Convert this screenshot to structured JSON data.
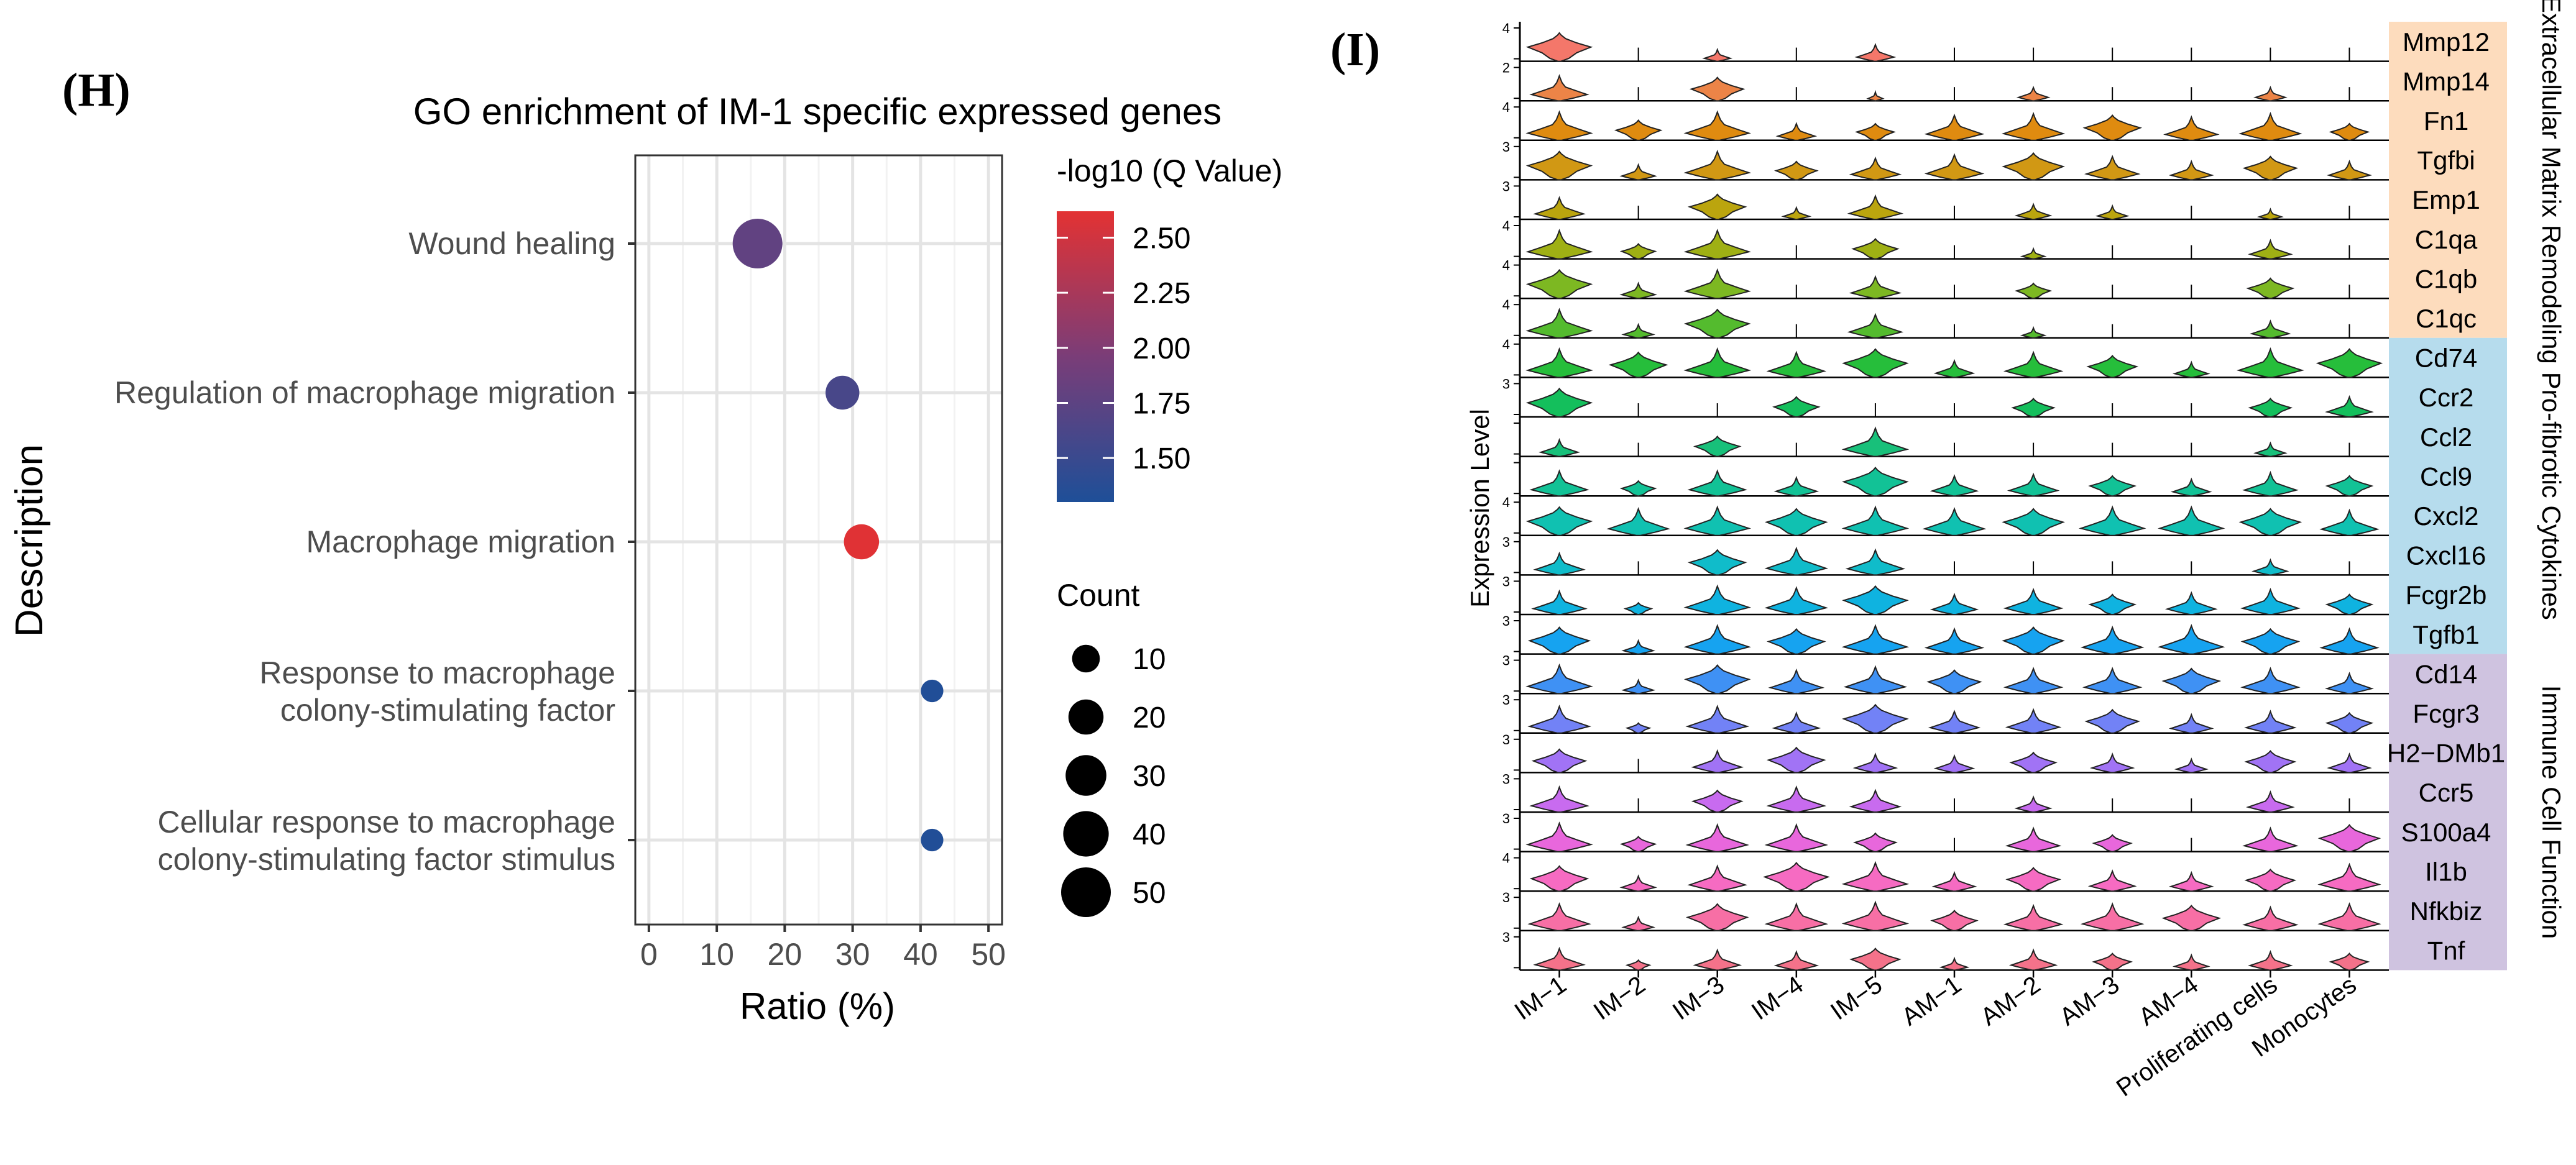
{
  "panel_h": {
    "label": "(H)",
    "chart_data": {
      "type": "scatter",
      "title": "GO enrichment of IM-1 specific expressed genes",
      "xlabel": "Ratio (%)",
      "ylabel": "Description",
      "xlim": [
        -2,
        52
      ],
      "xticks": [
        0,
        10,
        20,
        30,
        40,
        50
      ],
      "grid": true,
      "terms": [
        {
          "line1": "Wound healing",
          "line2": "",
          "ratio": 16,
          "count": 50,
          "qvalue": 1.78
        },
        {
          "line1": "Regulation of macrophage migration",
          "line2": "",
          "ratio": 28.5,
          "count": 18,
          "qvalue": 1.6
        },
        {
          "line1": "Macrophage migration",
          "line2": "",
          "ratio": 31.3,
          "count": 20,
          "qvalue": 2.6
        },
        {
          "line1": "Response to macrophage",
          "line2": "colony-stimulating factor",
          "ratio": 41.7,
          "count": 5,
          "qvalue": 1.32
        },
        {
          "line1": "Cellular response to macrophage",
          "line2": "colony-stimulating factor stimulus",
          "ratio": 41.7,
          "count": 5,
          "qvalue": 1.32
        }
      ],
      "color_legend": {
        "title": "-log10 (Q Value)",
        "min": 1.3,
        "max": 2.62,
        "low_color": "#1e4f98",
        "mid_color": "#7a3d78",
        "high_color": "#e33233",
        "ticks": [
          "2.50",
          "2.25",
          "2.00",
          "1.75",
          "1.50"
        ]
      },
      "size_legend": {
        "title": "Count",
        "values": [
          10,
          20,
          30,
          40,
          50
        ]
      }
    }
  },
  "panel_i": {
    "label": "(I)",
    "chart_data": {
      "type": "violin",
      "ylabel": "Expression Level",
      "clusters": [
        "IM−1",
        "IM−2",
        "IM−3",
        "IM−4",
        "IM−5",
        "AM−1",
        "AM−2",
        "AM−3",
        "AM−4",
        "Proliferating cells",
        "Monocytes"
      ],
      "genes": [
        {
          "name": "Mmp12",
          "ymax": "4",
          "color": "#f4776a",
          "group": 0,
          "levels": [
            0.85,
            0,
            0.35,
            0,
            0.5,
            0,
            0,
            0,
            0,
            0,
            0
          ]
        },
        {
          "name": "Mmp14",
          "ymax": "2",
          "color": "#ec8447",
          "group": 0,
          "levels": [
            0.75,
            0,
            0.7,
            0,
            0.2,
            0,
            0.4,
            0,
            0,
            0.4,
            0
          ]
        },
        {
          "name": "Fn1",
          "ymax": "4",
          "color": "#df8b10",
          "group": 0,
          "levels": [
            0.85,
            0.6,
            0.85,
            0.5,
            0.5,
            0.75,
            0.8,
            0.75,
            0.7,
            0.8,
            0.5
          ]
        },
        {
          "name": "Tgfbi",
          "ymax": "3",
          "color": "#d19814",
          "group": 0,
          "levels": [
            0.85,
            0.45,
            0.85,
            0.55,
            0.65,
            0.75,
            0.8,
            0.7,
            0.55,
            0.7,
            0.55
          ]
        },
        {
          "name": "Emp1",
          "ymax": "3",
          "color": "#bba50e",
          "group": 0,
          "levels": [
            0.65,
            0,
            0.75,
            0.35,
            0.7,
            0,
            0.45,
            0.4,
            0,
            0.3,
            0
          ]
        },
        {
          "name": "C1qa",
          "ymax": "4",
          "color": "#9fb014",
          "group": 0,
          "levels": [
            0.85,
            0.45,
            0.85,
            0,
            0.6,
            0,
            0.3,
            0,
            0,
            0.55,
            0
          ]
        },
        {
          "name": "C1qb",
          "ymax": "4",
          "color": "#7db822",
          "group": 0,
          "levels": [
            0.85,
            0.45,
            0.85,
            0,
            0.65,
            0,
            0.45,
            0,
            0,
            0.6,
            0
          ]
        },
        {
          "name": "C1qc",
          "ymax": "4",
          "color": "#54bb2e",
          "group": 0,
          "levels": [
            0.85,
            0.4,
            0.85,
            0,
            0.7,
            0,
            0.3,
            0,
            0,
            0.5,
            0
          ]
        },
        {
          "name": "Cd74",
          "ymax": "4",
          "color": "#26be3b",
          "group": 1,
          "levels": [
            0.85,
            0.75,
            0.85,
            0.75,
            0.85,
            0.5,
            0.75,
            0.65,
            0.45,
            0.85,
            0.85
          ]
        },
        {
          "name": "Ccr2",
          "ymax": "3",
          "color": "#14bf5c",
          "group": 1,
          "levels": [
            0.85,
            0,
            0,
            0.6,
            0,
            0,
            0.55,
            0,
            0,
            0.55,
            0.6
          ]
        },
        {
          "name": "Ccl2",
          "ymax": "",
          "color": "#18c07a",
          "group": 1,
          "levels": [
            0.5,
            0,
            0.6,
            0,
            0.85,
            0,
            0,
            0,
            0,
            0.4,
            0
          ]
        },
        {
          "name": "Ccl9",
          "ymax": "",
          "color": "#12c296",
          "group": 1,
          "levels": [
            0.75,
            0.45,
            0.75,
            0.55,
            0.85,
            0.6,
            0.65,
            0.6,
            0.5,
            0.7,
            0.6
          ]
        },
        {
          "name": "Cxcl2",
          "ymax": "4",
          "color": "#10c1b1",
          "group": 1,
          "levels": [
            0.85,
            0.8,
            0.85,
            0.8,
            0.85,
            0.8,
            0.8,
            0.85,
            0.85,
            0.8,
            0.75
          ]
        },
        {
          "name": "Cxcl16",
          "ymax": "3",
          "color": "#10bcca",
          "group": 1,
          "levels": [
            0.65,
            0,
            0.75,
            0.8,
            0.75,
            0,
            0,
            0,
            0,
            0.45,
            0
          ]
        },
        {
          "name": "Fcgr2b",
          "ymax": "3",
          "color": "#0fb3e0",
          "group": 1,
          "levels": [
            0.7,
            0.35,
            0.85,
            0.8,
            0.85,
            0.6,
            0.75,
            0.6,
            0.65,
            0.75,
            0.6
          ]
        },
        {
          "name": "Tgfb1",
          "ymax": "3",
          "color": "#16a3f0",
          "group": 1,
          "levels": [
            0.8,
            0.4,
            0.85,
            0.75,
            0.85,
            0.75,
            0.8,
            0.8,
            0.85,
            0.75,
            0.75
          ]
        },
        {
          "name": "Cd14",
          "ymax": "3",
          "color": "#3f91f4",
          "group": 2,
          "levels": [
            0.85,
            0.4,
            0.85,
            0.7,
            0.8,
            0.7,
            0.75,
            0.75,
            0.75,
            0.75,
            0.6
          ]
        },
        {
          "name": "Fcgr3",
          "ymax": "3",
          "color": "#7282f6",
          "group": 2,
          "levels": [
            0.8,
            0.3,
            0.8,
            0.6,
            0.85,
            0.65,
            0.7,
            0.7,
            0.55,
            0.65,
            0.6
          ]
        },
        {
          "name": "H2−DMb1",
          "ymax": "3",
          "color": "#a173f5",
          "group": 2,
          "levels": [
            0.7,
            0,
            0.65,
            0.75,
            0.55,
            0.5,
            0.6,
            0.55,
            0.4,
            0.65,
            0.55
          ]
        },
        {
          "name": "Ccr5",
          "ymax": "3",
          "color": "#c86bef",
          "group": 2,
          "levels": [
            0.75,
            0,
            0.65,
            0.75,
            0.65,
            0,
            0.45,
            0,
            0,
            0.6,
            0
          ]
        },
        {
          "name": "S100a4",
          "ymax": "3",
          "color": "#e867dc",
          "group": 2,
          "levels": [
            0.85,
            0.45,
            0.8,
            0.8,
            0.55,
            0,
            0.7,
            0.5,
            0,
            0.7,
            0.8
          ]
        },
        {
          "name": "Il1b",
          "ymax": "4",
          "color": "#f66bc2",
          "group": 2,
          "levels": [
            0.75,
            0.45,
            0.75,
            0.85,
            0.85,
            0.55,
            0.7,
            0.6,
            0.55,
            0.65,
            0.8
          ]
        },
        {
          "name": "Nfkbiz",
          "ymax": "3",
          "color": "#f76fa5",
          "group": 2,
          "levels": [
            0.8,
            0.4,
            0.8,
            0.8,
            0.85,
            0.6,
            0.75,
            0.8,
            0.75,
            0.7,
            0.8
          ]
        },
        {
          "name": "Tnf",
          "ymax": "3",
          "color": "#f4728a",
          "group": 2,
          "levels": [
            0.65,
            0.3,
            0.6,
            0.55,
            0.65,
            0.35,
            0.6,
            0.5,
            0.45,
            0.55,
            0.5
          ]
        }
      ],
      "groups": [
        {
          "label": "Extracellular Matrix Remodeling",
          "color": "#fddcbd"
        },
        {
          "label": "Pro-fibrotic Cytokines",
          "color": "#b6dced"
        },
        {
          "label": "Immune Cell Function",
          "color": "#cfc3e0"
        }
      ]
    }
  }
}
